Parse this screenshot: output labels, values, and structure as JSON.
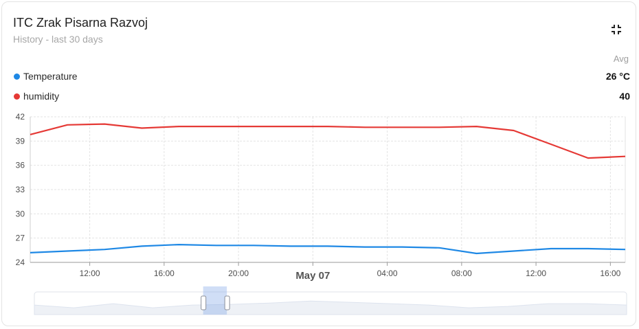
{
  "card": {
    "title": "ITC Zrak Pisarna Razvoj",
    "subtitle": "History - last 30 days",
    "avg_header": "Avg",
    "collapse_icon": "collapse-icon"
  },
  "legend": [
    {
      "name": "Temperature",
      "avg": "26 °C",
      "color": "#1e88e5"
    },
    {
      "name": "humidity",
      "avg": "40",
      "color": "#e53935"
    }
  ],
  "chart_data": {
    "type": "line",
    "x_ticks": [
      "12:00",
      "16:00",
      "20:00",
      "May 07",
      "04:00",
      "08:00",
      "12:00",
      "16:00"
    ],
    "x_tick_hours": [
      12,
      16,
      20,
      24,
      28,
      32,
      36,
      40
    ],
    "xlim": [
      8.8,
      40.8
    ],
    "ylim": [
      24,
      42
    ],
    "y_ticks": [
      24,
      27,
      30,
      33,
      36,
      39,
      42
    ],
    "grid": true,
    "series": [
      {
        "name": "humidity",
        "color": "#e53935",
        "x": [
          8.8,
          10.8,
          12.8,
          14.8,
          16.8,
          18.8,
          20.8,
          22.8,
          24.8,
          26.8,
          28.8,
          30.8,
          32.8,
          34.8,
          36.8,
          38.8,
          40.8
        ],
        "values": [
          39.8,
          41.0,
          41.1,
          40.6,
          40.8,
          40.8,
          40.8,
          40.8,
          40.8,
          40.7,
          40.7,
          40.7,
          40.8,
          40.3,
          38.6,
          36.9,
          37.1
        ]
      },
      {
        "name": "Temperature",
        "color": "#1e88e5",
        "x": [
          8.8,
          10.8,
          12.8,
          14.8,
          16.8,
          18.8,
          20.8,
          22.8,
          24.8,
          26.8,
          28.8,
          30.8,
          32.8,
          34.8,
          36.8,
          38.8,
          40.8
        ],
        "values": [
          25.2,
          25.4,
          25.6,
          26.0,
          26.2,
          26.1,
          26.1,
          26.0,
          26.0,
          25.9,
          25.9,
          25.8,
          25.1,
          25.4,
          25.7,
          25.7,
          25.6
        ]
      }
    ],
    "navigator": {
      "values": [
        0.55,
        0.35,
        0.65,
        0.35,
        0.55,
        0.6,
        0.7,
        0.85,
        0.75,
        0.65,
        0.55,
        0.35,
        0.45,
        0.65,
        0.65,
        0.55
      ],
      "window": [
        0.285,
        0.325
      ]
    }
  }
}
